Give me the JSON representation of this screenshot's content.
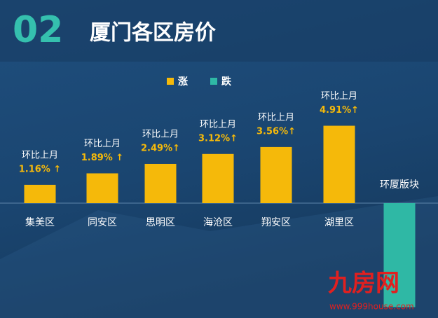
{
  "header": {
    "number": "02",
    "title": "厦门各区房价"
  },
  "chart_data": {
    "type": "bar",
    "categories": [
      "集美区",
      "同安区",
      "思明区",
      "海沧区",
      "翔安区",
      "湖里区",
      "环厦版块"
    ],
    "annotation": "环比上月",
    "series": [
      {
        "name": "涨",
        "color": "#f5b90a",
        "values": [
          1.16,
          1.89,
          2.49,
          3.12,
          3.56,
          4.91,
          null
        ],
        "value_labels": [
          "1.16% ↑",
          "1.89% ↑",
          "2.49%↑",
          "3.12%↑",
          "3.56%↑",
          "4.91%↑",
          null
        ]
      },
      {
        "name": "跌",
        "color": "#2fb8a5",
        "values": [
          null,
          null,
          null,
          null,
          null,
          null,
          -6.6
        ]
      }
    ]
  },
  "watermark": {
    "brand": "九房网",
    "url": "www.999house.com"
  }
}
